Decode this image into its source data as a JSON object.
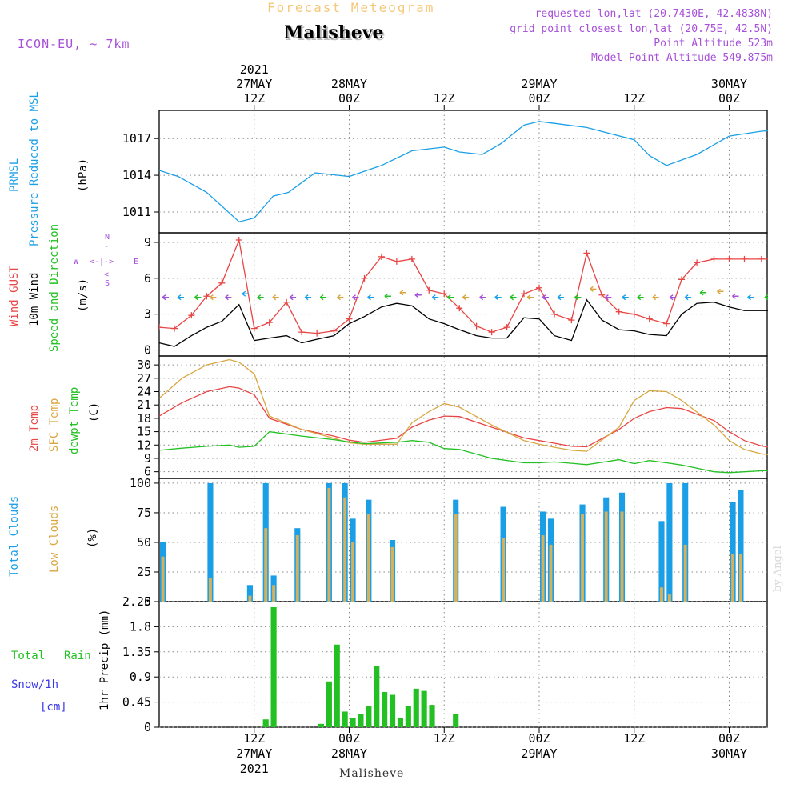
{
  "header": {
    "product_title": "Forecast Meteogram",
    "location": "Malisheve",
    "model": "ICON-EU, ~ 7km",
    "requested": "requested lon,lat (20.7430E, 42.4838N)",
    "grid_point": "grid point closest lon,lat (20.75E, 42.5N)",
    "point_altitude": "Point Altitude 523m",
    "model_altitude": "Model Point Altitude 549.875m",
    "footer_location": "Malisheve",
    "watermark": "by Angel"
  },
  "time_axis": {
    "ticks": [
      {
        "day": 0.5,
        "hour_label": "12Z",
        "date_label": "27MAY",
        "year_label": "2021"
      },
      {
        "day": 1.0,
        "hour_label": "00Z",
        "date_label": "28MAY",
        "year_label": ""
      },
      {
        "day": 1.5,
        "hour_label": "12Z",
        "date_label": "",
        "year_label": ""
      },
      {
        "day": 2.0,
        "hour_label": "00Z",
        "date_label": "29MAY",
        "year_label": ""
      },
      {
        "day": 2.5,
        "hour_label": "12Z",
        "date_label": "",
        "year_label": ""
      },
      {
        "day": 3.0,
        "hour_label": "00Z",
        "date_label": "30MAY",
        "year_label": ""
      }
    ]
  },
  "wind_compass": {
    "n": "N",
    "s": "S",
    "w": "W",
    "e": "E"
  },
  "panels": {
    "pressure": {
      "label1": "PRMSL",
      "label2": "Pressure Reduced to MSL",
      "unit": "(hPa)"
    },
    "wind": {
      "label_gust": "Wind GUST",
      "label_wind": "10m Wind",
      "label_dir": "Speed and Direction",
      "unit": "(m/s)"
    },
    "temp": {
      "label1": "2m Temp",
      "label2": "SFC Temp",
      "label3": "dewpt Temp",
      "unit": "(C)"
    },
    "clouds": {
      "label1": "Total Clouds",
      "label2": "Low Clouds",
      "unit": "(%)"
    },
    "precip": {
      "label1": "Total",
      "label1b": "Rain",
      "label2": "Snow/1h",
      "label3": "[cm]",
      "unit": "1hr Precip (mm)"
    }
  },
  "colors": {
    "pressure": "#1a9fe6",
    "gust": "#e84545",
    "wind": "#000000",
    "temp2m": "#e84545",
    "sfc": "#d9a640",
    "dewpt": "#22c022",
    "total_clouds": "#1a9fe6",
    "low_clouds": "#d9b05a",
    "precip": "#22c022",
    "title_orange": "#f5c878",
    "info_purple": "#a64fd9",
    "snow_label": "#3a3ae8"
  },
  "chart_data": [
    {
      "type": "line",
      "panel": "pressure",
      "x_unit": "days since 2021-05-27 00Z",
      "ylabel": "PRMSL (hPa)",
      "yticks": [
        1011,
        1014,
        1017
      ],
      "ylim": [
        1009.3,
        1019.3
      ],
      "grid": true,
      "x": [
        0.0,
        0.1,
        0.25,
        0.42,
        0.5,
        0.6,
        0.68,
        0.82,
        1.0,
        1.17,
        1.33,
        1.5,
        1.58,
        1.7,
        1.8,
        1.92,
        2.0,
        2.1,
        2.25,
        2.5,
        2.58,
        2.67,
        2.83,
        3.0,
        3.17,
        3.33,
        3.42,
        3.5,
        3.6,
        3.67
      ],
      "series": [
        {
          "name": "PRMSL",
          "values": [
            1014.4,
            1013.9,
            1012.6,
            1010.2,
            1010.5,
            1012.3,
            1012.6,
            1014.2,
            1013.9,
            1014.8,
            1016.0,
            1016.3,
            1015.9,
            1015.7,
            1016.6,
            1018.1,
            1018.4,
            1018.2,
            1017.9,
            1016.9,
            1015.6,
            1014.8,
            1015.7,
            1017.2,
            1017.6,
            1017.8,
            1018.2,
            1018.4,
            1018.0,
            1017.4
          ]
        }
      ]
    },
    {
      "type": "line",
      "panel": "wind",
      "x_unit": "days since 2021-05-27 00Z",
      "ylabel": "(m/s)",
      "yticks": [
        0,
        3,
        6,
        9
      ],
      "ylim": [
        -0.5,
        9.8
      ],
      "grid": true,
      "x": [
        0.0,
        0.08,
        0.17,
        0.25,
        0.33,
        0.42,
        0.5,
        0.58,
        0.67,
        0.75,
        0.83,
        0.92,
        1.0,
        1.08,
        1.17,
        1.25,
        1.33,
        1.42,
        1.5,
        1.58,
        1.67,
        1.75,
        1.83,
        1.92,
        2.0,
        2.08,
        2.17,
        2.25,
        2.33,
        2.42,
        2.5,
        2.58,
        2.67,
        2.75,
        2.83,
        2.92,
        3.0,
        3.08,
        3.17,
        3.25,
        3.33,
        3.42,
        3.5,
        3.58,
        3.67
      ],
      "series": [
        {
          "name": "Wind GUST",
          "values": [
            1.9,
            1.8,
            2.9,
            4.5,
            5.6,
            9.2,
            1.8,
            2.3,
            4.0,
            1.5,
            1.4,
            1.6,
            2.6,
            6.0,
            7.8,
            7.4,
            7.6,
            5.0,
            4.7,
            3.5,
            2.0,
            1.5,
            1.9,
            4.7,
            5.2,
            3.0,
            2.5,
            8.1,
            4.6,
            3.2,
            3.0,
            2.6,
            2.2,
            5.9,
            7.3,
            7.6,
            7.6,
            7.6,
            7.6,
            7.6,
            7.6,
            7.6,
            7.6,
            7.6,
            7.6
          ]
        },
        {
          "name": "10m Wind",
          "values": [
            0.6,
            0.3,
            1.2,
            1.9,
            2.4,
            3.8,
            0.8,
            1.0,
            1.2,
            0.6,
            0.9,
            1.2,
            2.2,
            2.8,
            3.6,
            3.9,
            3.7,
            2.6,
            2.2,
            1.7,
            1.2,
            1.0,
            1.0,
            2.7,
            2.6,
            1.2,
            0.8,
            4.2,
            2.5,
            1.7,
            1.6,
            1.3,
            1.2,
            3.0,
            3.9,
            4.0,
            3.6,
            3.3,
            3.3,
            3.3,
            3.3,
            3.3,
            3.3,
            3.3,
            3.3
          ]
        }
      ]
    },
    {
      "type": "line",
      "panel": "temp",
      "x_unit": "days since 2021-05-27 00Z",
      "ylabel": "(C)",
      "yticks": [
        6,
        9,
        12,
        15,
        18,
        21,
        24,
        27,
        30
      ],
      "ylim": [
        4.5,
        32.0
      ],
      "grid": true,
      "x": [
        0.0,
        0.12,
        0.25,
        0.37,
        0.42,
        0.5,
        0.58,
        0.75,
        0.92,
        1.0,
        1.08,
        1.25,
        1.33,
        1.42,
        1.5,
        1.58,
        1.75,
        1.92,
        2.0,
        2.08,
        2.17,
        2.25,
        2.42,
        2.5,
        2.58,
        2.67,
        2.75,
        2.92,
        3.0,
        3.08,
        3.17,
        3.25,
        3.33,
        3.42,
        3.5,
        3.58,
        3.67
      ],
      "series": [
        {
          "name": "2m Temp",
          "values": [
            18.5,
            21.5,
            24.0,
            25.1,
            24.8,
            23.3,
            18.0,
            15.5,
            14.0,
            13.1,
            12.6,
            13.5,
            16.0,
            17.6,
            18.5,
            18.4,
            16.0,
            13.6,
            13.0,
            12.4,
            11.7,
            11.6,
            15.5,
            18.0,
            19.5,
            20.4,
            20.2,
            17.5,
            15.0,
            13.0,
            11.8,
            11.2,
            11.0,
            12.5,
            13.8,
            14.8,
            14.9
          ]
        },
        {
          "name": "SFC Temp",
          "values": [
            22.5,
            27.0,
            30.0,
            31.2,
            30.6,
            28.0,
            18.5,
            15.5,
            13.5,
            12.5,
            12.2,
            12.2,
            17.0,
            19.5,
            21.3,
            20.5,
            16.5,
            13.0,
            12.2,
            11.5,
            10.8,
            10.6,
            16.0,
            22.0,
            24.2,
            24.0,
            22.0,
            16.5,
            13.0,
            11.0,
            10.0,
            9.6,
            9.5,
            12.5,
            14.5,
            15.5,
            18.0
          ]
        },
        {
          "name": "dewpt Temp",
          "values": [
            10.8,
            11.3,
            11.7,
            12.0,
            11.5,
            11.7,
            15.0,
            14.0,
            13.2,
            12.7,
            12.3,
            12.6,
            13.0,
            12.6,
            11.2,
            11.0,
            9.0,
            8.0,
            8.0,
            8.2,
            7.9,
            7.6,
            8.7,
            7.8,
            8.5,
            8.0,
            7.5,
            6.0,
            5.8,
            6.0,
            6.2,
            6.3,
            5.9,
            6.8,
            6.5,
            7.0,
            6.2
          ]
        }
      ]
    },
    {
      "type": "bar",
      "panel": "clouds",
      "x_unit": "hours since 2021-05-27 00Z",
      "ylabel": "(%)",
      "yticks": [
        0,
        25,
        50,
        75,
        100
      ],
      "ylim": [
        0,
        104
      ],
      "grid": true,
      "x": [
        0,
        6,
        11,
        13,
        14,
        17,
        21,
        23,
        24,
        26,
        29,
        37,
        43,
        48,
        49,
        53,
        56,
        58,
        63,
        64,
        66,
        72,
        73,
        82,
        83
      ],
      "series": [
        {
          "name": "Total Clouds",
          "values": [
            50,
            100,
            14,
            100,
            22,
            62,
            100,
            100,
            70,
            86,
            52,
            86,
            80,
            76,
            70,
            82,
            88,
            92,
            68,
            100,
            100,
            84,
            94,
            98,
            97
          ]
        },
        {
          "name": "Low Clouds",
          "values": [
            38,
            20,
            5,
            62,
            14,
            56,
            96,
            88,
            50,
            74,
            46,
            74,
            54,
            56,
            48,
            74,
            76,
            76,
            12,
            6,
            48,
            40,
            40,
            76,
            92
          ]
        }
      ]
    },
    {
      "type": "bar",
      "panel": "precip",
      "x_unit": "hours since 2021-05-27 00Z",
      "ylabel": "1hr Precip (mm)",
      "yticks": [
        0,
        0.45,
        0.9,
        1.35,
        1.8,
        2.25
      ],
      "ytick_labels": [
        "0",
        "0.45",
        "0.9",
        "1.35",
        "1.8",
        "2.25"
      ],
      "ylim": [
        0,
        2.25
      ],
      "grid": true,
      "x": [
        13,
        14,
        20,
        21,
        22,
        23,
        24,
        25,
        26,
        27,
        28,
        29,
        30,
        31,
        32,
        33,
        34,
        35,
        37,
        83
      ],
      "series": [
        {
          "name": "Total Rain",
          "values": [
            0.14,
            2.15,
            0.06,
            0.82,
            1.48,
            0.28,
            0.16,
            0.24,
            0.38,
            1.1,
            0.63,
            0.58,
            0.16,
            0.38,
            0.69,
            0.65,
            0.4,
            0.0,
            0.24,
            0.03
          ]
        }
      ]
    }
  ]
}
